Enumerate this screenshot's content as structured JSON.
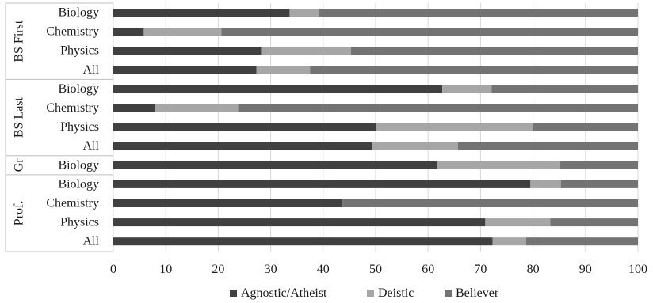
{
  "chart_data": {
    "type": "bar",
    "orientation": "horizontal",
    "stacked": true,
    "xlim": [
      0,
      100
    ],
    "xticks": [
      0,
      10,
      20,
      30,
      40,
      50,
      60,
      70,
      80,
      90,
      100
    ],
    "grid": "vertical",
    "legend_position": "bottom",
    "groups": [
      {
        "label": "BS First",
        "categories": [
          "Biology",
          "Chemistry",
          "Physics",
          "All"
        ]
      },
      {
        "label": "BS Last",
        "categories": [
          "Biology",
          "Chemistry",
          "Physics",
          "All"
        ]
      },
      {
        "label": "Gr",
        "categories": [
          "Biology"
        ]
      },
      {
        "label": "Prof.",
        "categories": [
          "Biology",
          "Chemistry",
          "Physics",
          "All"
        ]
      }
    ],
    "series": [
      {
        "name": "Agnostic/Atheist",
        "color": "#404040",
        "values": [
          33.6,
          5.8,
          28.2,
          27.3,
          62.7,
          7.9,
          50.0,
          49.3,
          61.7,
          79.5,
          43.7,
          70.9,
          72.3
        ]
      },
      {
        "name": "Deistic",
        "color": "#a6a6a6",
        "values": [
          5.6,
          14.8,
          17.1,
          10.2,
          9.4,
          15.9,
          30.0,
          16.4,
          23.5,
          5.8,
          0.0,
          12.4,
          6.4
        ]
      },
      {
        "name": "Believer",
        "color": "#737373",
        "values": [
          60.8,
          79.4,
          54.7,
          62.5,
          27.9,
          76.2,
          20.0,
          34.3,
          14.8,
          14.7,
          56.3,
          16.7,
          21.3
        ]
      }
    ]
  }
}
